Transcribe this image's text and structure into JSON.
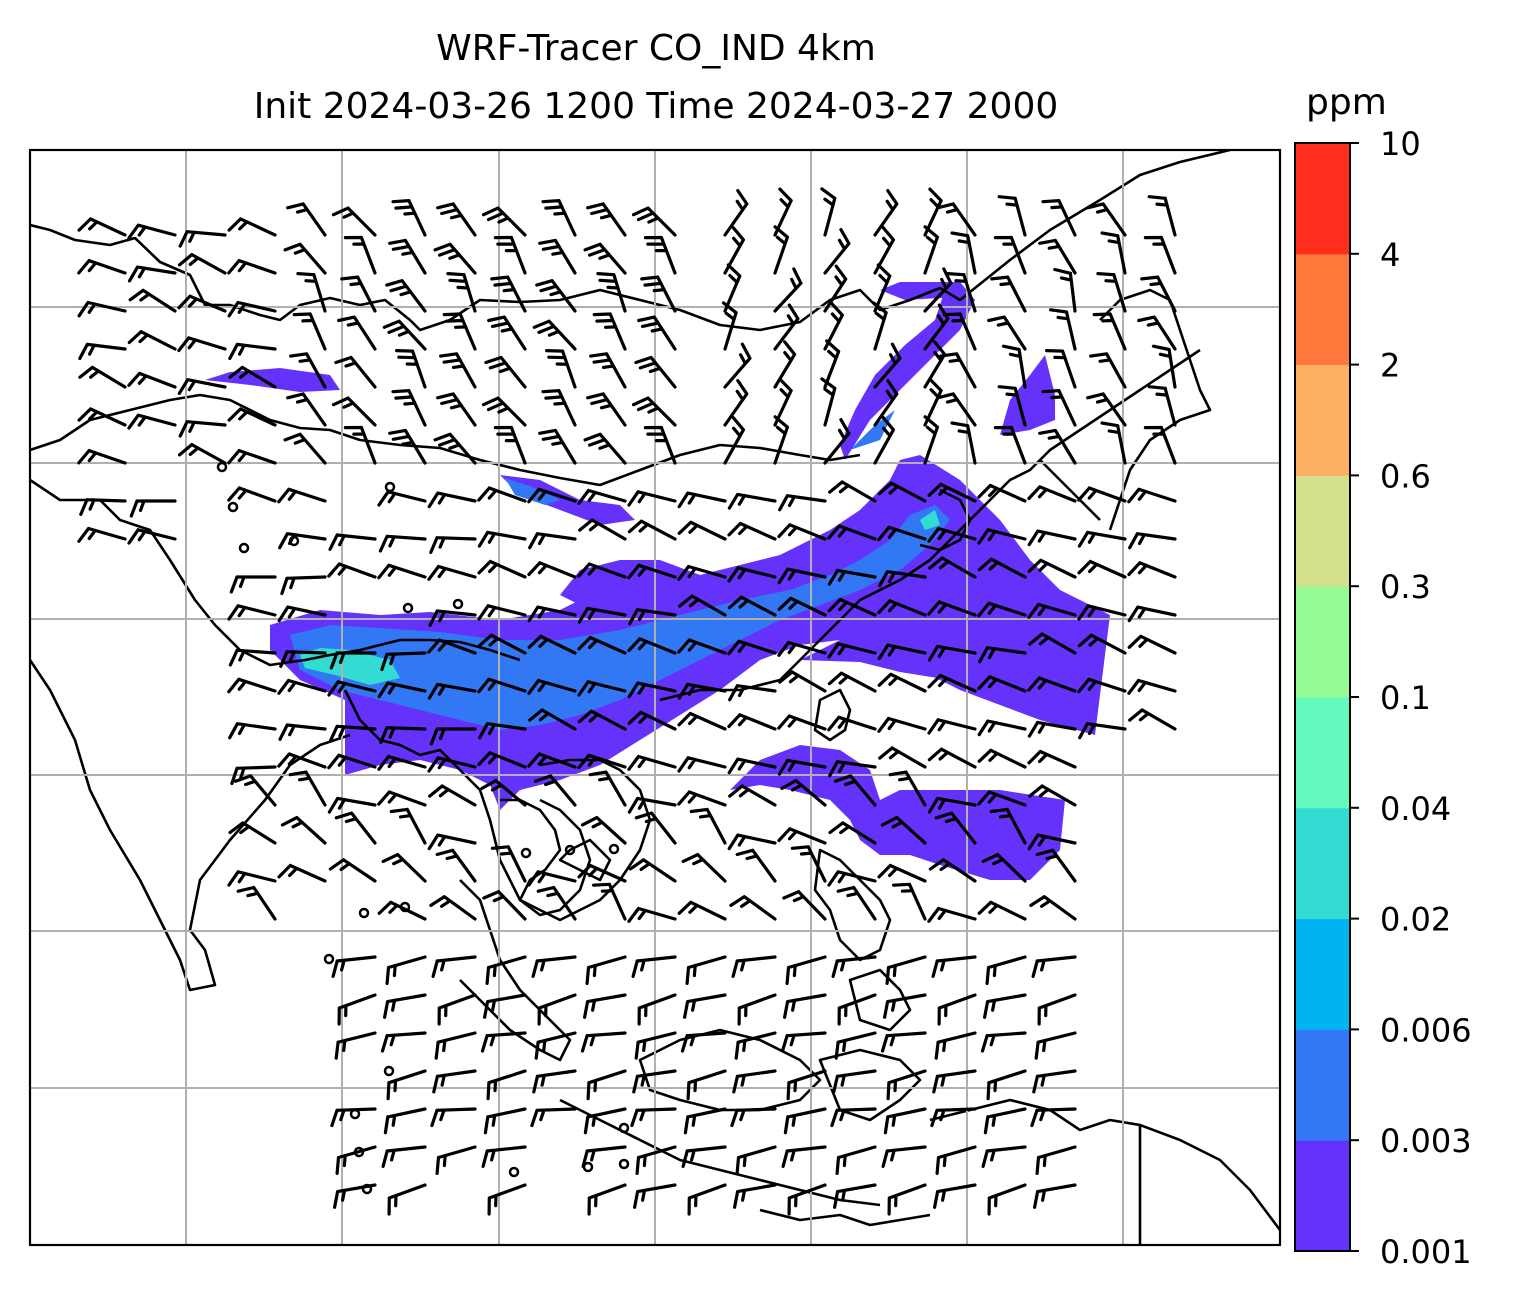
{
  "title": {
    "line1": "WRF-Tracer CO_IND 4km",
    "line2": "Init 2024-03-26 1200 Time 2024-03-27 2000"
  },
  "colorbar": {
    "unit": "ppm",
    "ticks": [
      "0.001",
      "0.003",
      "0.006",
      "0.02",
      "0.04",
      "0.1",
      "0.3",
      "0.6",
      "2",
      "4",
      "10"
    ],
    "colors": [
      "#6432fa",
      "#3278f5",
      "#00b4f0",
      "#32dcd2",
      "#64faBe",
      "#96fa96",
      "#d2e18c",
      "#ffaf64",
      "#ff783c",
      "#ff2d1e"
    ]
  },
  "map": {
    "gridlines": true,
    "fields": [
      "tracer concentration (filled contours)",
      "wind barbs",
      "coastlines",
      "country borders"
    ]
  }
}
